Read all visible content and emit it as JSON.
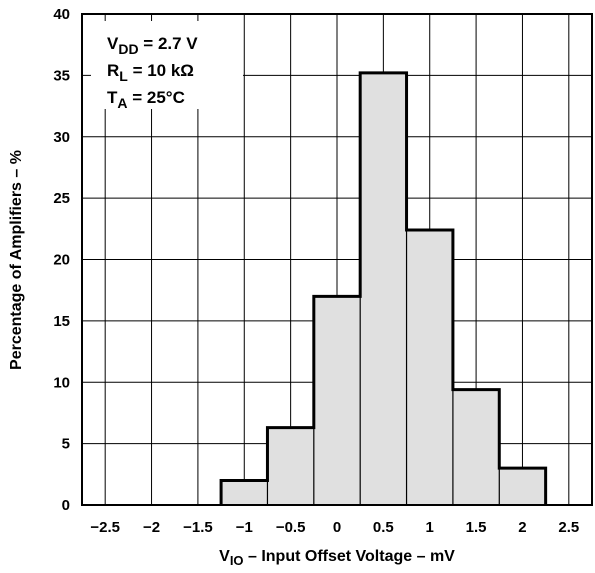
{
  "chart_data": {
    "type": "bar",
    "title": "",
    "xlabel": {
      "prefix": "V",
      "sub": "IO",
      "rest": " – Input Offset Voltage – mV"
    },
    "ylabel": "Percentage of Amplifiers – %",
    "xlim": [
      -2.75,
      2.75
    ],
    "ylim": [
      0,
      40
    ],
    "x_ticks": [
      -2.5,
      -2,
      -1.5,
      -1,
      -0.5,
      0,
      0.5,
      1,
      1.5,
      2,
      2.5
    ],
    "x_tick_labels": [
      "−2.5",
      "−2",
      "−1.5",
      "−1",
      "−0.5",
      "0",
      "0.5",
      "1",
      "1.5",
      "2",
      "2.5"
    ],
    "y_ticks": [
      0,
      5,
      10,
      15,
      20,
      25,
      30,
      35,
      40
    ],
    "y_tick_labels": [
      "0",
      "5",
      "10",
      "15",
      "20",
      "25",
      "30",
      "35",
      "40"
    ],
    "bin_edges": [
      -1.25,
      -0.75,
      -0.25,
      0.25,
      0.75,
      1.25,
      1.75,
      2.25
    ],
    "bin_centers": [
      -1,
      -0.5,
      0,
      0.5,
      1,
      1.5,
      2
    ],
    "values": [
      2.0,
      6.3,
      17.0,
      35.2,
      22.4,
      9.4,
      3.0
    ],
    "grid": true,
    "bar_fill": "#e0e0e0",
    "bar_stroke": "#000000",
    "conditions": [
      {
        "prefix": "V",
        "sub": "DD",
        "rest": " = 2.7 V"
      },
      {
        "prefix": "R",
        "sub": "L",
        "rest": " = 10 kΩ"
      },
      {
        "prefix": "T",
        "sub": "A",
        "rest": " = 25°C"
      }
    ]
  }
}
